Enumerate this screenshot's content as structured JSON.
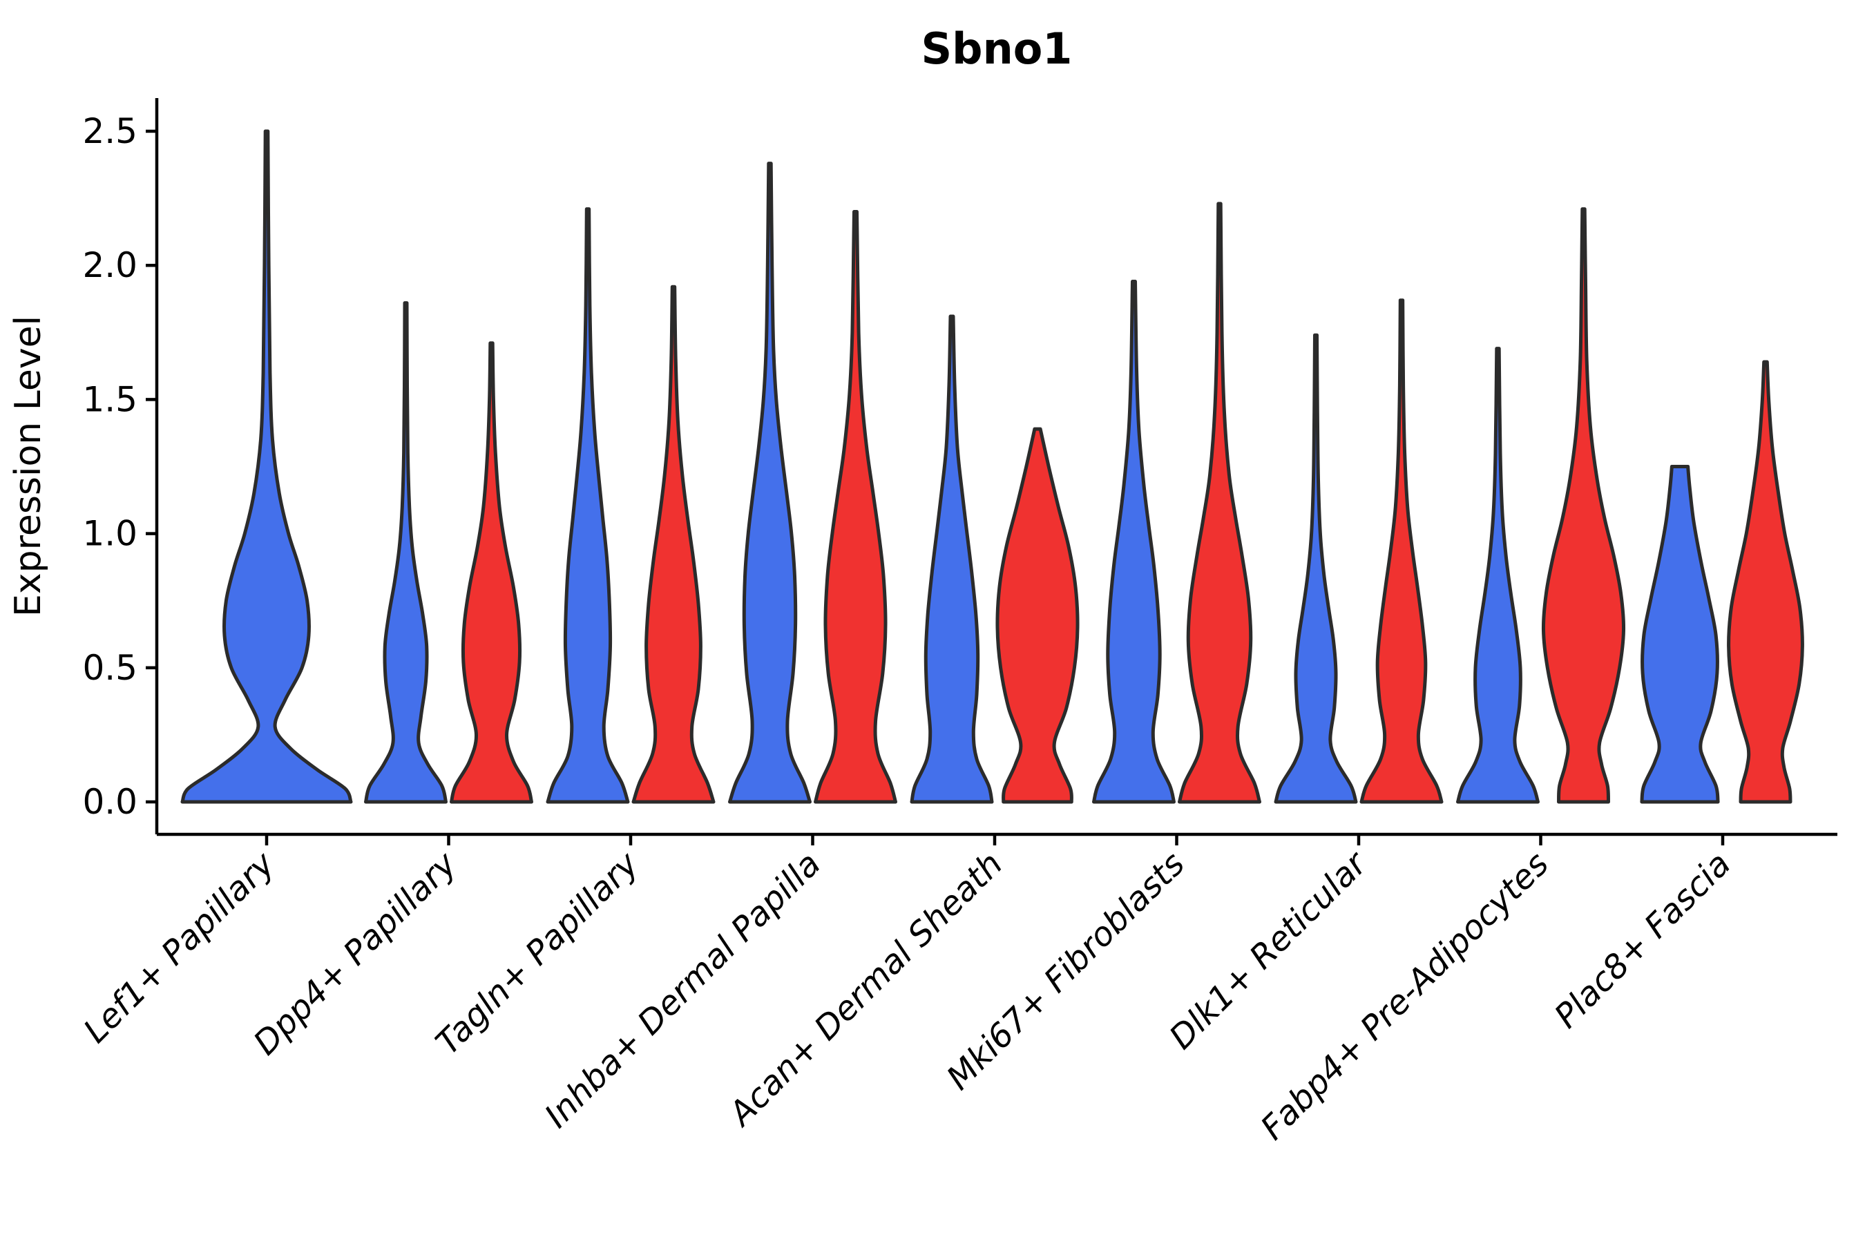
{
  "chart_data": {
    "type": "violin",
    "title": "Sbno1",
    "xlabel": "",
    "ylabel": "Expression Level",
    "ylim": [
      0,
      2.5
    ],
    "yticks": [
      "0.0",
      "0.5",
      "1.0",
      "1.5",
      "2.0",
      "2.5"
    ],
    "ytick_values": [
      0,
      0.5,
      1.0,
      1.5,
      2.0,
      2.5
    ],
    "grid": false,
    "legend": "none",
    "x_tick_rotation": 45,
    "categories": [
      "Lef1+ Papillary",
      "Dpp4+ Papillary",
      "Tagln+ Papillary",
      "Inhba+ Dermal Papilla",
      "Acan+ Dermal Sheath",
      "Mki67+ Fibroblasts",
      "Dlk1+ Reticular",
      "Fabp4+ Pre-Adipocytes",
      "Plac8+ Fascia"
    ],
    "series_colors": {
      "blue": "#4470EB",
      "red": "#F03230"
    },
    "outline_color": "#2B2B2B",
    "axis_color": "#000000",
    "series": [
      {
        "name": "blue",
        "color": "#4470EB",
        "max_values": [
          2.5,
          1.86,
          2.21,
          2.38,
          1.81,
          1.94,
          1.74,
          1.69,
          1.25
        ]
      },
      {
        "name": "red",
        "color": "#F03230",
        "max_values": [
          null,
          1.71,
          1.92,
          2.2,
          1.39,
          2.23,
          1.87,
          2.21,
          1.64
        ]
      }
    ],
    "violins": [
      {
        "category": "Lef1+ Papillary",
        "series": "blue",
        "max": 2.5,
        "flat_top": false,
        "profile": [
          [
            0,
            1.0
          ],
          [
            0.05,
            0.93
          ],
          [
            0.12,
            0.6
          ],
          [
            0.2,
            0.28
          ],
          [
            0.28,
            0.1
          ],
          [
            0.38,
            0.22
          ],
          [
            0.5,
            0.42
          ],
          [
            0.62,
            0.5
          ],
          [
            0.75,
            0.48
          ],
          [
            0.88,
            0.38
          ],
          [
            1.0,
            0.26
          ],
          [
            1.15,
            0.15
          ],
          [
            1.35,
            0.07
          ],
          [
            1.6,
            0.04
          ],
          [
            2.0,
            0.025
          ],
          [
            2.5,
            0.015
          ]
        ]
      },
      {
        "category": "Dpp4+ Papillary",
        "series": "blue",
        "max": 1.86,
        "flat_top": false,
        "profile": [
          [
            0,
            1.0
          ],
          [
            0.06,
            0.9
          ],
          [
            0.14,
            0.55
          ],
          [
            0.22,
            0.32
          ],
          [
            0.32,
            0.38
          ],
          [
            0.45,
            0.5
          ],
          [
            0.58,
            0.52
          ],
          [
            0.7,
            0.42
          ],
          [
            0.82,
            0.28
          ],
          [
            0.95,
            0.16
          ],
          [
            1.1,
            0.09
          ],
          [
            1.3,
            0.05
          ],
          [
            1.55,
            0.035
          ],
          [
            1.86,
            0.025
          ]
        ]
      },
      {
        "category": "Dpp4+ Papillary",
        "series": "red",
        "max": 1.71,
        "flat_top": false,
        "profile": [
          [
            0,
            1.0
          ],
          [
            0.06,
            0.9
          ],
          [
            0.15,
            0.55
          ],
          [
            0.25,
            0.38
          ],
          [
            0.38,
            0.58
          ],
          [
            0.52,
            0.7
          ],
          [
            0.66,
            0.68
          ],
          [
            0.8,
            0.55
          ],
          [
            0.95,
            0.35
          ],
          [
            1.1,
            0.2
          ],
          [
            1.3,
            0.1
          ],
          [
            1.5,
            0.05
          ],
          [
            1.71,
            0.03
          ]
        ]
      },
      {
        "category": "Tagln+ Papillary",
        "series": "blue",
        "max": 2.21,
        "flat_top": false,
        "profile": [
          [
            0,
            1.0
          ],
          [
            0.07,
            0.85
          ],
          [
            0.17,
            0.5
          ],
          [
            0.28,
            0.4
          ],
          [
            0.42,
            0.5
          ],
          [
            0.58,
            0.56
          ],
          [
            0.74,
            0.54
          ],
          [
            0.9,
            0.48
          ],
          [
            1.05,
            0.38
          ],
          [
            1.2,
            0.28
          ],
          [
            1.38,
            0.17
          ],
          [
            1.6,
            0.09
          ],
          [
            1.85,
            0.05
          ],
          [
            2.21,
            0.03
          ]
        ]
      },
      {
        "category": "Tagln+ Papillary",
        "series": "red",
        "max": 1.92,
        "flat_top": false,
        "profile": [
          [
            0,
            1.0
          ],
          [
            0.07,
            0.85
          ],
          [
            0.18,
            0.52
          ],
          [
            0.28,
            0.46
          ],
          [
            0.42,
            0.62
          ],
          [
            0.58,
            0.68
          ],
          [
            0.74,
            0.62
          ],
          [
            0.9,
            0.5
          ],
          [
            1.05,
            0.36
          ],
          [
            1.22,
            0.22
          ],
          [
            1.42,
            0.11
          ],
          [
            1.65,
            0.055
          ],
          [
            1.92,
            0.03
          ]
        ]
      },
      {
        "category": "Inhba+ Dermal Papilla",
        "series": "blue",
        "max": 2.38,
        "flat_top": false,
        "profile": [
          [
            0,
            1.0
          ],
          [
            0.07,
            0.85
          ],
          [
            0.18,
            0.52
          ],
          [
            0.3,
            0.44
          ],
          [
            0.48,
            0.58
          ],
          [
            0.66,
            0.64
          ],
          [
            0.84,
            0.62
          ],
          [
            1.0,
            0.54
          ],
          [
            1.15,
            0.42
          ],
          [
            1.32,
            0.28
          ],
          [
            1.5,
            0.16
          ],
          [
            1.7,
            0.09
          ],
          [
            2.0,
            0.055
          ],
          [
            2.38,
            0.03
          ]
        ]
      },
      {
        "category": "Inhba+ Dermal Papilla",
        "series": "red",
        "max": 2.2,
        "flat_top": false,
        "profile": [
          [
            0,
            1.0
          ],
          [
            0.07,
            0.87
          ],
          [
            0.18,
            0.56
          ],
          [
            0.3,
            0.5
          ],
          [
            0.48,
            0.68
          ],
          [
            0.66,
            0.75
          ],
          [
            0.84,
            0.7
          ],
          [
            1.0,
            0.58
          ],
          [
            1.15,
            0.44
          ],
          [
            1.32,
            0.28
          ],
          [
            1.52,
            0.15
          ],
          [
            1.75,
            0.08
          ],
          [
            2.2,
            0.035
          ]
        ]
      },
      {
        "category": "Acan+ Dermal Sheath",
        "series": "blue",
        "max": 1.81,
        "flat_top": false,
        "profile": [
          [
            0,
            1.0
          ],
          [
            0.06,
            0.92
          ],
          [
            0.16,
            0.62
          ],
          [
            0.26,
            0.54
          ],
          [
            0.4,
            0.62
          ],
          [
            0.55,
            0.65
          ],
          [
            0.7,
            0.6
          ],
          [
            0.85,
            0.5
          ],
          [
            1.0,
            0.38
          ],
          [
            1.15,
            0.26
          ],
          [
            1.32,
            0.14
          ],
          [
            1.55,
            0.07
          ],
          [
            1.81,
            0.035
          ]
        ]
      },
      {
        "category": "Acan+ Dermal Sheath",
        "series": "red",
        "max": 1.39,
        "flat_top": false,
        "profile": [
          [
            0,
            0.85
          ],
          [
            0.05,
            0.82
          ],
          [
            0.14,
            0.55
          ],
          [
            0.22,
            0.42
          ],
          [
            0.35,
            0.72
          ],
          [
            0.5,
            0.92
          ],
          [
            0.65,
            1.0
          ],
          [
            0.8,
            0.95
          ],
          [
            0.95,
            0.78
          ],
          [
            1.1,
            0.52
          ],
          [
            1.25,
            0.28
          ],
          [
            1.39,
            0.07
          ]
        ]
      },
      {
        "category": "Mki67+ Fibroblasts",
        "series": "blue",
        "max": 1.94,
        "flat_top": false,
        "profile": [
          [
            0,
            1.0
          ],
          [
            0.06,
            0.9
          ],
          [
            0.16,
            0.58
          ],
          [
            0.26,
            0.48
          ],
          [
            0.4,
            0.6
          ],
          [
            0.55,
            0.65
          ],
          [
            0.72,
            0.6
          ],
          [
            0.88,
            0.5
          ],
          [
            1.02,
            0.38
          ],
          [
            1.18,
            0.25
          ],
          [
            1.38,
            0.13
          ],
          [
            1.6,
            0.07
          ],
          [
            1.94,
            0.035
          ]
        ]
      },
      {
        "category": "Mki67+ Fibroblasts",
        "series": "red",
        "max": 2.23,
        "flat_top": false,
        "profile": [
          [
            0,
            1.0
          ],
          [
            0.07,
            0.87
          ],
          [
            0.18,
            0.52
          ],
          [
            0.28,
            0.46
          ],
          [
            0.44,
            0.68
          ],
          [
            0.6,
            0.78
          ],
          [
            0.76,
            0.72
          ],
          [
            0.92,
            0.56
          ],
          [
            1.06,
            0.4
          ],
          [
            1.22,
            0.24
          ],
          [
            1.45,
            0.12
          ],
          [
            1.75,
            0.06
          ],
          [
            2.23,
            0.03
          ]
        ]
      },
      {
        "category": "Dlk1+ Reticular",
        "series": "blue",
        "max": 1.74,
        "flat_top": false,
        "profile": [
          [
            0,
            1.0
          ],
          [
            0.06,
            0.88
          ],
          [
            0.15,
            0.52
          ],
          [
            0.23,
            0.36
          ],
          [
            0.35,
            0.46
          ],
          [
            0.48,
            0.5
          ],
          [
            0.6,
            0.44
          ],
          [
            0.72,
            0.32
          ],
          [
            0.85,
            0.2
          ],
          [
            1.0,
            0.11
          ],
          [
            1.2,
            0.06
          ],
          [
            1.45,
            0.04
          ],
          [
            1.74,
            0.025
          ]
        ]
      },
      {
        "category": "Dlk1+ Reticular",
        "series": "red",
        "max": 1.87,
        "flat_top": false,
        "profile": [
          [
            0,
            1.0
          ],
          [
            0.06,
            0.88
          ],
          [
            0.16,
            0.52
          ],
          [
            0.25,
            0.42
          ],
          [
            0.38,
            0.55
          ],
          [
            0.52,
            0.6
          ],
          [
            0.66,
            0.52
          ],
          [
            0.8,
            0.4
          ],
          [
            0.94,
            0.27
          ],
          [
            1.1,
            0.15
          ],
          [
            1.3,
            0.08
          ],
          [
            1.55,
            0.045
          ],
          [
            1.87,
            0.03
          ]
        ]
      },
      {
        "category": "Fabp4+ Pre-Adipocytes",
        "series": "blue",
        "max": 1.69,
        "flat_top": false,
        "profile": [
          [
            0,
            1.0
          ],
          [
            0.06,
            0.88
          ],
          [
            0.15,
            0.55
          ],
          [
            0.23,
            0.42
          ],
          [
            0.36,
            0.54
          ],
          [
            0.5,
            0.56
          ],
          [
            0.64,
            0.46
          ],
          [
            0.78,
            0.32
          ],
          [
            0.92,
            0.2
          ],
          [
            1.08,
            0.11
          ],
          [
            1.3,
            0.06
          ],
          [
            1.69,
            0.03
          ]
        ]
      },
      {
        "category": "Fabp4+ Pre-Adipocytes",
        "series": "red",
        "max": 2.21,
        "flat_top": false,
        "profile": [
          [
            0,
            0.62
          ],
          [
            0.06,
            0.6
          ],
          [
            0.14,
            0.45
          ],
          [
            0.22,
            0.4
          ],
          [
            0.35,
            0.68
          ],
          [
            0.5,
            0.9
          ],
          [
            0.64,
            1.0
          ],
          [
            0.78,
            0.93
          ],
          [
            0.92,
            0.75
          ],
          [
            1.06,
            0.52
          ],
          [
            1.22,
            0.32
          ],
          [
            1.4,
            0.17
          ],
          [
            1.65,
            0.08
          ],
          [
            1.95,
            0.05
          ],
          [
            2.21,
            0.03
          ]
        ]
      },
      {
        "category": "Plac8+ Fascia",
        "series": "blue",
        "max": 1.25,
        "flat_top": true,
        "profile": [
          [
            0,
            0.95
          ],
          [
            0.06,
            0.9
          ],
          [
            0.15,
            0.62
          ],
          [
            0.22,
            0.52
          ],
          [
            0.34,
            0.78
          ],
          [
            0.48,
            0.93
          ],
          [
            0.62,
            0.9
          ],
          [
            0.76,
            0.72
          ],
          [
            0.9,
            0.52
          ],
          [
            1.05,
            0.34
          ],
          [
            1.18,
            0.24
          ],
          [
            1.25,
            0.2
          ]
        ]
      },
      {
        "category": "Plac8+ Fascia",
        "series": "red",
        "max": 1.64,
        "flat_top": false,
        "profile": [
          [
            0,
            0.62
          ],
          [
            0.05,
            0.6
          ],
          [
            0.13,
            0.46
          ],
          [
            0.2,
            0.43
          ],
          [
            0.3,
            0.62
          ],
          [
            0.44,
            0.84
          ],
          [
            0.58,
            0.92
          ],
          [
            0.72,
            0.86
          ],
          [
            0.86,
            0.68
          ],
          [
            1.0,
            0.48
          ],
          [
            1.15,
            0.32
          ],
          [
            1.32,
            0.17
          ],
          [
            1.5,
            0.08
          ],
          [
            1.64,
            0.04
          ]
        ]
      }
    ]
  }
}
